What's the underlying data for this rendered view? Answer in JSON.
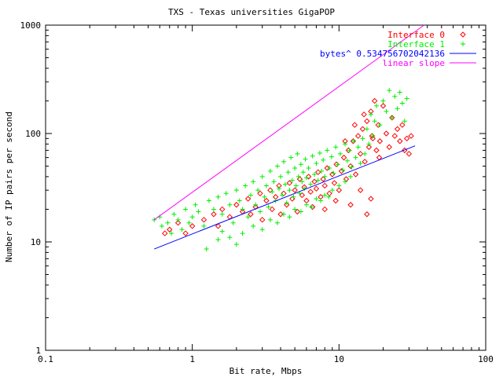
{
  "chart_data": {
    "type": "scatter",
    "title": "TXS - Texas universities GigaPOP",
    "xlabel": "Bit rate, Mbps",
    "ylabel": "Number of IP pairs per second",
    "xscale": "log",
    "yscale": "log",
    "xlim": [
      0.1,
      100
    ],
    "ylim": [
      1,
      1000
    ],
    "grid": false,
    "legend_position": "top-right",
    "x_ticks": [
      {
        "value": 0.1,
        "label": "0.1"
      },
      {
        "value": 1,
        "label": "1"
      },
      {
        "value": 10,
        "label": "10"
      },
      {
        "value": 100,
        "label": "100"
      }
    ],
    "y_ticks": [
      {
        "value": 1,
        "label": "1"
      },
      {
        "value": 10,
        "label": "10"
      },
      {
        "value": 100,
        "label": "100"
      },
      {
        "value": 1000,
        "label": "1000"
      }
    ],
    "series": [
      {
        "name": "Interface 0",
        "kind": "points",
        "marker": "diamond",
        "color": "#ff0000",
        "points": [
          [
            0.65,
            12
          ],
          [
            0.7,
            13
          ],
          [
            0.8,
            15
          ],
          [
            0.9,
            12
          ],
          [
            1.0,
            14
          ],
          [
            1.2,
            16
          ],
          [
            1.4,
            18
          ],
          [
            1.5,
            14
          ],
          [
            1.6,
            20
          ],
          [
            1.8,
            17
          ],
          [
            2.0,
            22
          ],
          [
            2.2,
            19
          ],
          [
            2.4,
            25
          ],
          [
            2.5,
            18
          ],
          [
            2.7,
            21
          ],
          [
            2.9,
            28
          ],
          [
            3.0,
            16
          ],
          [
            3.2,
            24
          ],
          [
            3.4,
            30
          ],
          [
            3.5,
            20
          ],
          [
            3.7,
            26
          ],
          [
            3.9,
            33
          ],
          [
            4.0,
            18
          ],
          [
            4.2,
            28
          ],
          [
            4.4,
            22
          ],
          [
            4.6,
            35
          ],
          [
            4.8,
            25
          ],
          [
            5.0,
            30
          ],
          [
            5.2,
            19
          ],
          [
            5.4,
            38
          ],
          [
            5.6,
            27
          ],
          [
            5.8,
            32
          ],
          [
            6.0,
            24
          ],
          [
            6.2,
            40
          ],
          [
            6.4,
            29
          ],
          [
            6.6,
            21
          ],
          [
            6.8,
            36
          ],
          [
            7.0,
            31
          ],
          [
            7.2,
            44
          ],
          [
            7.5,
            26
          ],
          [
            7.8,
            38
          ],
          [
            8.0,
            33
          ],
          [
            8.3,
            48
          ],
          [
            8.6,
            28
          ],
          [
            9.0,
            42
          ],
          [
            9.3,
            35
          ],
          [
            9.6,
            52
          ],
          [
            10.0,
            30
          ],
          [
            10.4,
            45
          ],
          [
            10.8,
            60
          ],
          [
            11.2,
            38
          ],
          [
            11.6,
            70
          ],
          [
            12.0,
            50
          ],
          [
            12.5,
            85
          ],
          [
            13.0,
            42
          ],
          [
            13.5,
            95
          ],
          [
            14.0,
            65
          ],
          [
            14.5,
            110
          ],
          [
            15.0,
            55
          ],
          [
            15.5,
            130
          ],
          [
            16.0,
            75
          ],
          [
            16.5,
            160
          ],
          [
            17.0,
            90
          ],
          [
            17.5,
            200
          ],
          [
            18.0,
            70
          ],
          [
            18.5,
            120
          ],
          [
            19.0,
            85
          ],
          [
            20.0,
            180
          ],
          [
            21.0,
            100
          ],
          [
            22.0,
            75
          ],
          [
            23.0,
            140
          ],
          [
            24.0,
            95
          ],
          [
            25.0,
            110
          ],
          [
            26.0,
            85
          ],
          [
            27.0,
            120
          ],
          [
            28.0,
            70
          ],
          [
            29.0,
            90
          ],
          [
            30.0,
            65
          ],
          [
            31.0,
            95
          ],
          [
            15.5,
            18
          ],
          [
            16.5,
            25
          ],
          [
            14.0,
            30
          ],
          [
            12.0,
            22
          ],
          [
            9.5,
            24
          ],
          [
            8.0,
            20
          ],
          [
            11.0,
            85
          ],
          [
            12.8,
            120
          ],
          [
            14.8,
            150
          ],
          [
            16.8,
            95
          ],
          [
            18.8,
            60
          ]
        ]
      },
      {
        "name": "Interface 1",
        "kind": "points",
        "marker": "plus",
        "color": "#00ee00",
        "points": [
          [
            0.55,
            16
          ],
          [
            0.6,
            17
          ],
          [
            0.62,
            14
          ],
          [
            0.68,
            15
          ],
          [
            0.72,
            12
          ],
          [
            0.75,
            18
          ],
          [
            0.8,
            16
          ],
          [
            0.85,
            13
          ],
          [
            0.9,
            20
          ],
          [
            0.95,
            15
          ],
          [
            1.0,
            17
          ],
          [
            1.05,
            22
          ],
          [
            1.1,
            19
          ],
          [
            1.2,
            14
          ],
          [
            1.25,
            8.6
          ],
          [
            1.3,
            24
          ],
          [
            1.4,
            20
          ],
          [
            1.5,
            10.5
          ],
          [
            1.5,
            26
          ],
          [
            1.6,
            18
          ],
          [
            1.7,
            28
          ],
          [
            1.8,
            22
          ],
          [
            1.9,
            15
          ],
          [
            2.0,
            30
          ],
          [
            2.1,
            24
          ],
          [
            2.2,
            20
          ],
          [
            2.3,
            33
          ],
          [
            2.4,
            17
          ],
          [
            2.5,
            27
          ],
          [
            2.6,
            36
          ],
          [
            2.7,
            22
          ],
          [
            2.8,
            30
          ],
          [
            2.9,
            19
          ],
          [
            3.0,
            40
          ],
          [
            3.1,
            26
          ],
          [
            3.2,
            33
          ],
          [
            3.3,
            21
          ],
          [
            3.4,
            45
          ],
          [
            3.5,
            29
          ],
          [
            3.6,
            36
          ],
          [
            3.7,
            24
          ],
          [
            3.8,
            50
          ],
          [
            3.9,
            31
          ],
          [
            4.0,
            40
          ],
          [
            4.1,
            27
          ],
          [
            4.2,
            55
          ],
          [
            4.3,
            34
          ],
          [
            4.4,
            23
          ],
          [
            4.5,
            44
          ],
          [
            4.6,
            30
          ],
          [
            4.7,
            60
          ],
          [
            4.8,
            37
          ],
          [
            4.9,
            26
          ],
          [
            5.0,
            48
          ],
          [
            5.1,
            33
          ],
          [
            5.2,
            65
          ],
          [
            5.3,
            40
          ],
          [
            5.4,
            28
          ],
          [
            5.5,
            52
          ],
          [
            5.6,
            36
          ],
          [
            5.7,
            44
          ],
          [
            5.8,
            31
          ],
          [
            5.9,
            58
          ],
          [
            6.0,
            39
          ],
          [
            6.2,
            48
          ],
          [
            6.4,
            34
          ],
          [
            6.6,
            62
          ],
          [
            6.8,
            42
          ],
          [
            7.0,
            53
          ],
          [
            7.2,
            37
          ],
          [
            7.4,
            66
          ],
          [
            7.6,
            45
          ],
          [
            7.8,
            57
          ],
          [
            8.0,
            40
          ],
          [
            8.3,
            70
          ],
          [
            8.6,
            48
          ],
          [
            8.9,
            61
          ],
          [
            9.2,
            43
          ],
          [
            9.5,
            75
          ],
          [
            9.8,
            52
          ],
          [
            10.2,
            65
          ],
          [
            10.6,
            46
          ],
          [
            11.0,
            80
          ],
          [
            11.4,
            56
          ],
          [
            11.8,
            70
          ],
          [
            12.2,
            49
          ],
          [
            12.6,
            85
          ],
          [
            13.0,
            60
          ],
          [
            13.5,
            75
          ],
          [
            14.0,
            53
          ],
          [
            14.5,
            90
          ],
          [
            15.0,
            65
          ],
          [
            15.5,
            110
          ],
          [
            16.0,
            80
          ],
          [
            16.5,
            150
          ],
          [
            17.0,
            95
          ],
          [
            17.5,
            130
          ],
          [
            18.0,
            180
          ],
          [
            19.0,
            120
          ],
          [
            20.0,
            200
          ],
          [
            21.0,
            160
          ],
          [
            22.0,
            250
          ],
          [
            23.0,
            140
          ],
          [
            24.0,
            220
          ],
          [
            25.0,
            170
          ],
          [
            26.0,
            240
          ],
          [
            27.0,
            190
          ],
          [
            28.0,
            130
          ],
          [
            29.0,
            210
          ],
          [
            2.2,
            12
          ],
          [
            2.6,
            14
          ],
          [
            3.0,
            13
          ],
          [
            3.4,
            16
          ],
          [
            3.8,
            15
          ],
          [
            4.2,
            18
          ],
          [
            4.6,
            17
          ],
          [
            5.0,
            20
          ],
          [
            5.5,
            19
          ],
          [
            6.0,
            22
          ],
          [
            6.5,
            21
          ],
          [
            7.0,
            25
          ],
          [
            7.5,
            24
          ],
          [
            8.0,
            27
          ],
          [
            8.5,
            26
          ],
          [
            9.0,
            30
          ],
          [
            10.0,
            33
          ],
          [
            11.0,
            36
          ],
          [
            12.0,
            40
          ],
          [
            1.8,
            11
          ],
          [
            1.6,
            12.5
          ],
          [
            2.0,
            9.5
          ]
        ]
      },
      {
        "name": "bytes^ 0.534756702042136",
        "kind": "line",
        "color": "#0000ff",
        "x": [
          0.55,
          33
        ],
        "y": [
          8.6,
          77
        ]
      },
      {
        "name": "linear slope",
        "kind": "line",
        "color": "#ff00ff",
        "x": [
          0.55,
          38
        ],
        "y": [
          16,
          1000
        ]
      }
    ]
  }
}
